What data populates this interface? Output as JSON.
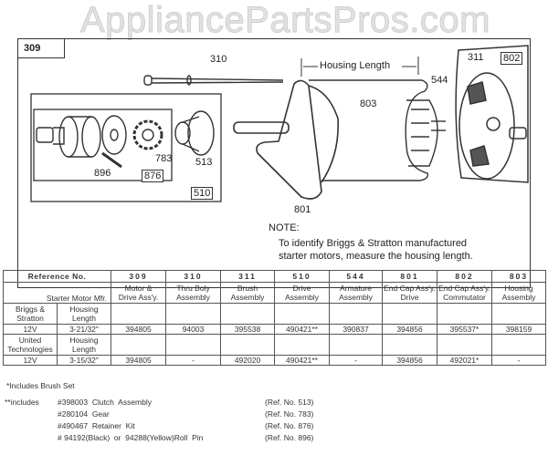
{
  "watermark": "AppliancePartsPros.com",
  "diagram": {
    "frame_label": "309",
    "callouts": {
      "thru_bolt": "310",
      "housing_length": "Housing Length",
      "armature": "544",
      "housing": "803",
      "brush": "311",
      "end_cap_commutator": "802",
      "end_cap_drive": "801",
      "drive_assembly": "510",
      "retainer_kit": "876",
      "roll_pin": "896",
      "gear": "783",
      "clutch": "513"
    },
    "note_title": "NOTE:",
    "note_lines": [
      "To identify Briggs & Stratton manufactured",
      "starter motors, measure the housing length."
    ]
  },
  "table": {
    "ref_header": "Reference No.",
    "mfr_header": "Starter Motor Mfr.",
    "columns": [
      {
        "ref": "309",
        "name1": "Motor &",
        "name2": "Drive Ass'y."
      },
      {
        "ref": "310",
        "name1": "Thru Boly",
        "name2": "Assembly"
      },
      {
        "ref": "311",
        "name1": "Brush",
        "name2": "Assembly"
      },
      {
        "ref": "510",
        "name1": "Drive",
        "name2": "Assembly"
      },
      {
        "ref": "544",
        "name1": "Armature",
        "name2": "Assembly"
      },
      {
        "ref": "801",
        "name1": "End Cap Ass'y.",
        "name2": "Drive"
      },
      {
        "ref": "802",
        "name1": "End Cap Ass'y.",
        "name2": "Commutator"
      },
      {
        "ref": "803",
        "name1": "Housing",
        "name2": "Assembly"
      }
    ],
    "rows": [
      {
        "mfr1": "Briggs &",
        "mfr2": "Stratton",
        "hl1": "Housing",
        "hl2": "Length",
        "voltage": "12V",
        "length": "3-21/32\"",
        "values": [
          "394805",
          "94003",
          "395538",
          "490421**",
          "390837",
          "394856",
          "395537*",
          "398159"
        ]
      },
      {
        "mfr1": "United",
        "mfr2": "Technologies",
        "hl1": "Housing",
        "hl2": "Length",
        "voltage": "12V",
        "length": "3-15/32\"",
        "values": [
          "394805",
          "-",
          "492020",
          "490421**",
          "-",
          "394856",
          "492021*",
          "-"
        ]
      }
    ]
  },
  "footnotes": {
    "single": "*Includes Brush Set",
    "double_label": "**includes",
    "items": [
      {
        "part": "#398003  Clutch  Assembly",
        "ref": "(Ref. No. 513)"
      },
      {
        "part": "#280104  Gear",
        "ref": "(Ref. No. 783)"
      },
      {
        "part": "#490467  Retainer  Kit",
        "ref": "(Ref. No. 876)"
      },
      {
        "part": "# 94192(Black)  or  94288(Yellow)Roll  Pin",
        "ref": "(Ref. No. 896)"
      }
    ]
  }
}
